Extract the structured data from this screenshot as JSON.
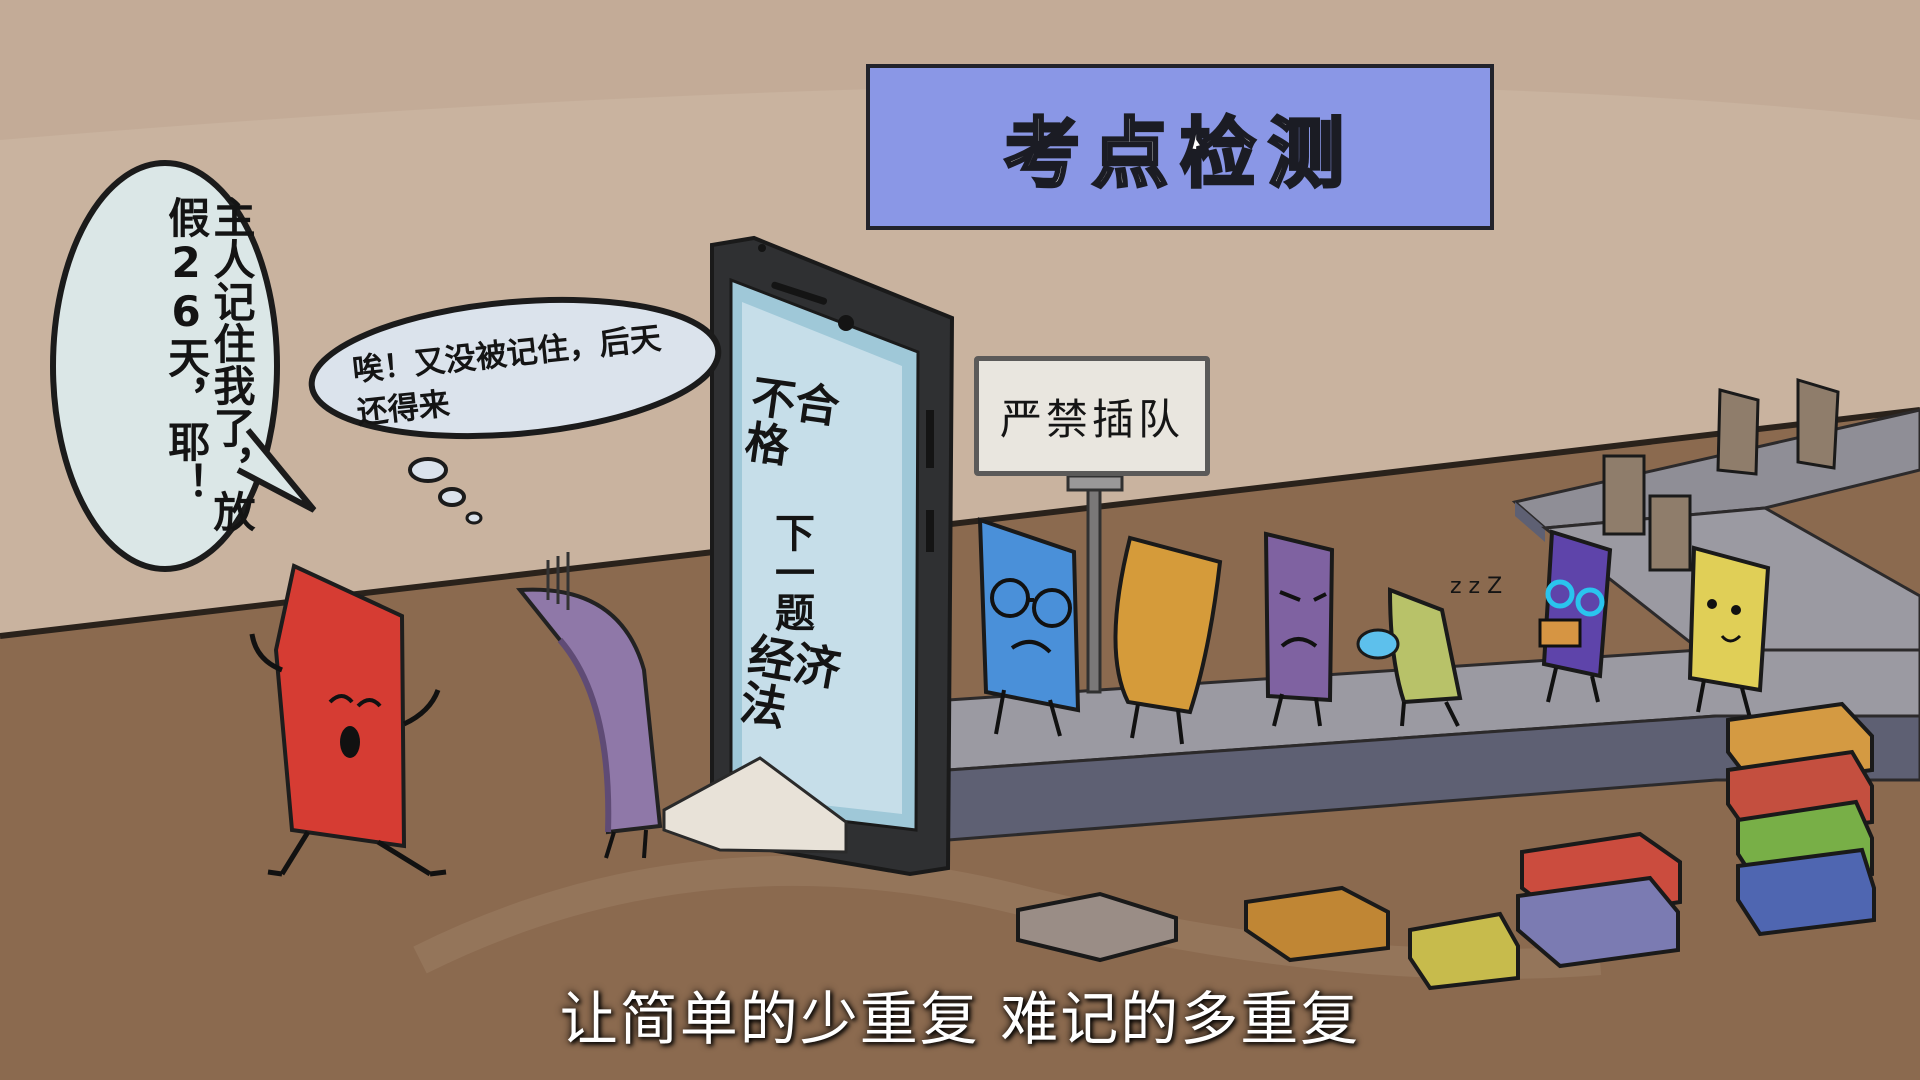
{
  "colors": {
    "wall": "#c9b39f",
    "floor": "#8b6a4f",
    "banner": "#8a97e6",
    "conveyor": "#9b9aa2",
    "red_card": "#d63c33",
    "purple_card": "#7b5a8b",
    "blue_card": "#4a90d9",
    "orange_card": "#d59b3a",
    "violet_card": "#7f62a1",
    "green_card": "#b8c269",
    "yellow_card": "#e0cf57"
  },
  "scene": {
    "title": "考点检测",
    "sign": "严禁插队",
    "phone": {
      "result": "不合格",
      "next": "下一题",
      "subject": "经济法"
    },
    "bubble_red": "主人记住我了，放假26天，耶！",
    "bubble_purple": "唉！又没被记住，后天还得来",
    "sleep_zzz": "z z Z",
    "subtitle": "让简单的少重复 难记的多重复"
  }
}
